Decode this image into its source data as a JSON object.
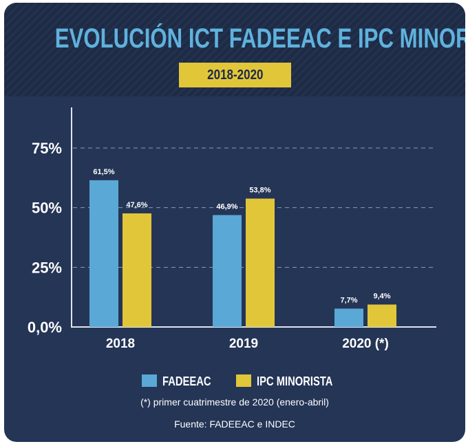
{
  "title": "EVOLUCIÓN ICT FADEEAC E IPC MINORISTA",
  "subtitle": "2018-2020",
  "colors": {
    "background": "#243556",
    "header": "#1d2b47",
    "title": "#5fb2dd",
    "badge": "#e2c63a",
    "fadeeac": "#5aa8d6",
    "ipc": "#e2c63a"
  },
  "legend": [
    {
      "label": "FADEEAC",
      "color": "#5aa8d6"
    },
    {
      "label": "IPC MINORISTA",
      "color": "#e2c63a"
    }
  ],
  "footnote": "(*) primer cuatrimestre de 2020 (enero-abril)",
  "source": "Fuente: FADEEAC e INDEC",
  "chart_data": {
    "type": "bar",
    "categories": [
      "2018",
      "2019",
      "2020 (*)"
    ],
    "series": [
      {
        "name": "FADEEAC",
        "values": [
          61.5,
          46.9,
          7.7
        ],
        "labels": [
          "61,5%",
          "46,9%",
          "7,7%"
        ],
        "color": "#5aa8d6"
      },
      {
        "name": "IPC MINORISTA",
        "values": [
          47.6,
          53.8,
          9.4
        ],
        "labels": [
          "47,6%",
          "53,8%",
          "9,4%"
        ],
        "color": "#e2c63a"
      }
    ],
    "yticks": [
      0,
      25,
      50,
      75
    ],
    "ytick_labels": [
      "0,0%",
      "25%",
      "50%",
      "75%"
    ],
    "ylim": [
      0,
      90
    ],
    "grid": "dashed horizontal at 25, 50, 75"
  }
}
